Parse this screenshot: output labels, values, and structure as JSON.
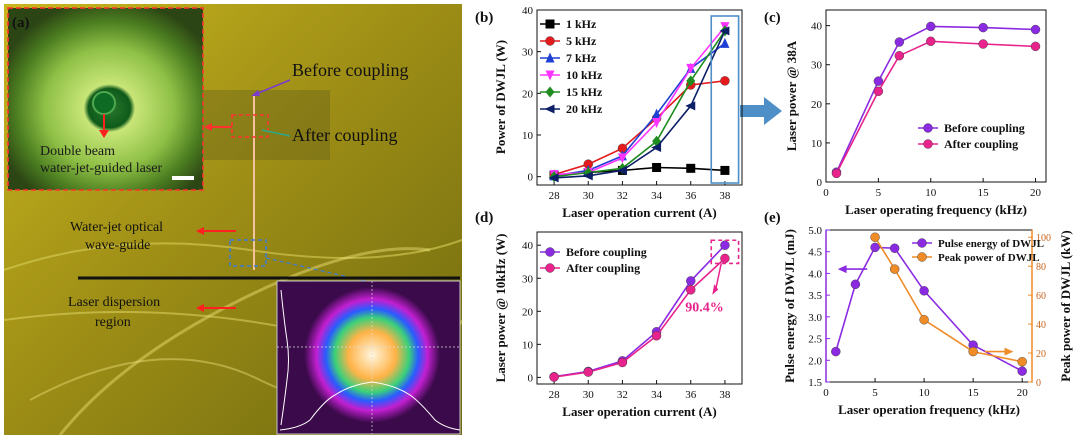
{
  "figure": {
    "panel_a": {
      "label": "(a)",
      "before_coupling": "Before coupling",
      "after_coupling": "After coupling",
      "inset_caption_line1": "Double beam",
      "inset_caption_line2": "water-jet-guided laser",
      "waveguide_line1": "Water-jet optical",
      "waveguide_line2": "wave-guide",
      "dispersion_line1": "Laser dispersion",
      "dispersion_line2": "region"
    }
  },
  "chart_data": [
    {
      "id": "b",
      "label": "(b)",
      "type": "line",
      "xlabel": "Laser operation current (A)",
      "ylabel": "Power of DWJL (W)",
      "x": [
        28,
        30,
        32,
        34,
        36,
        38
      ],
      "xticks": [
        "28",
        "30",
        "32",
        "34",
        "36",
        "38"
      ],
      "yticks": [
        "0",
        "10",
        "20",
        "30",
        "40"
      ],
      "xlim": [
        27,
        39
      ],
      "ylim": [
        -2,
        40
      ],
      "legend": "upper-left",
      "series": [
        {
          "name": "1 kHz",
          "marker": "square",
          "color": "#000000",
          "values": [
            0.3,
            1.0,
            1.5,
            2.2,
            2.0,
            1.5
          ]
        },
        {
          "name": "5 kHz",
          "marker": "circle",
          "color": "#e41a1c",
          "values": [
            0.5,
            3.0,
            6.8,
            14.0,
            22.0,
            23.0
          ]
        },
        {
          "name": "7 kHz",
          "marker": "triangle-up",
          "color": "#1f3fd4",
          "values": [
            0.2,
            1.5,
            5.0,
            15.0,
            26.0,
            32.0
          ]
        },
        {
          "name": "10 kHz",
          "marker": "triangle-down",
          "color": "#ff33ff",
          "values": [
            0.5,
            1.0,
            4.5,
            13.0,
            26.0,
            36.0
          ]
        },
        {
          "name": "15 kHz",
          "marker": "diamond",
          "color": "#1e8c1e",
          "values": [
            0.0,
            1.0,
            2.0,
            8.5,
            23.0,
            35.0
          ]
        },
        {
          "name": "20 kHz",
          "marker": "triangle-left",
          "color": "#0d1f66",
          "values": [
            -0.3,
            0.2,
            1.5,
            7.0,
            17.0,
            35.0
          ]
        }
      ]
    },
    {
      "id": "c",
      "label": "(c)",
      "type": "line",
      "xlabel": "Laser operating frequency (kHz)",
      "ylabel": "Laser power @ 38A",
      "x": [
        1,
        5,
        7,
        10,
        15,
        20
      ],
      "xticks": [
        "0",
        "5",
        "10",
        "15",
        "20"
      ],
      "yticks": [
        "0",
        "10",
        "20",
        "30",
        "40"
      ],
      "xlim": [
        0,
        21
      ],
      "ylim": [
        0,
        44
      ],
      "legend": "lower-right",
      "series": [
        {
          "name": "Before coupling",
          "marker": "circle",
          "color": "#8a2be2",
          "values": [
            2.5,
            25.8,
            35.8,
            39.8,
            39.5,
            39.0
          ]
        },
        {
          "name": "After coupling",
          "marker": "circle",
          "color": "#e8238c",
          "values": [
            2.2,
            23.2,
            32.3,
            36.0,
            35.3,
            34.7
          ]
        }
      ]
    },
    {
      "id": "d",
      "label": "(d)",
      "type": "line",
      "xlabel": "Laser operation current (A)",
      "ylabel": "Laser power @ 10kHz (W)",
      "x": [
        28,
        30,
        32,
        34,
        36,
        38
      ],
      "xticks": [
        "28",
        "30",
        "32",
        "34",
        "36",
        "38"
      ],
      "yticks": [
        "0",
        "10",
        "20",
        "30",
        "40"
      ],
      "xlim": [
        27,
        39
      ],
      "ylim": [
        -2,
        44
      ],
      "legend": "upper-left",
      "annotation": "90.4%",
      "series": [
        {
          "name": "Before coupling",
          "marker": "circle",
          "color": "#8a2be2",
          "values": [
            0.2,
            1.8,
            5.0,
            13.8,
            29.2,
            40.0
          ]
        },
        {
          "name": "After coupling",
          "marker": "circle",
          "color": "#e8238c",
          "values": [
            0.1,
            1.6,
            4.5,
            12.6,
            26.5,
            36.0
          ]
        }
      ]
    },
    {
      "id": "e",
      "label": "(e)",
      "type": "line",
      "xlabel": "Laser operation frequency (kHz)",
      "ylabel": "Pulse energy of DWJL (mJ)",
      "ylabel_right": "Peak power of DWJL (kW)",
      "xticks": [
        "0",
        "5",
        "10",
        "15",
        "20"
      ],
      "yticks": [
        "1.5",
        "2.0",
        "2.5",
        "3.0",
        "3.5",
        "4.0",
        "4.5",
        "5.0"
      ],
      "yticks_right": [
        "0",
        "20",
        "40",
        "60",
        "80",
        "100"
      ],
      "xlim": [
        0,
        21
      ],
      "ylim": [
        1.5,
        5.0
      ],
      "ylim_right": [
        0,
        105
      ],
      "legend": "top-right",
      "series": [
        {
          "name": "Pulse energy of DWJL",
          "axis": "left",
          "marker": "circle",
          "color": "#8a2be2",
          "x": [
            1,
            3,
            5,
            7,
            10,
            15,
            20
          ],
          "values": [
            2.2,
            3.75,
            4.6,
            4.58,
            3.6,
            2.35,
            1.75
          ]
        },
        {
          "name": "Peak power of DWJL",
          "axis": "right",
          "marker": "circle",
          "color": "#f08c28",
          "x": [
            5,
            7,
            10,
            15,
            20
          ],
          "values": [
            100,
            78,
            43,
            21,
            14
          ]
        }
      ]
    }
  ]
}
